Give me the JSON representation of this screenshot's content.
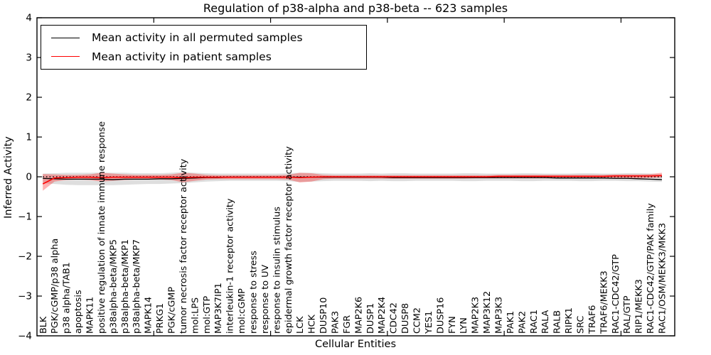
{
  "figure": {
    "title": "Regulation of p38-alpha and p38-beta -- 623 samples",
    "sample_count": "623"
  },
  "legend": {
    "items": [
      {
        "label": "Mean activity in all permuted samples",
        "color": "#000000"
      },
      {
        "label": "Mean activity in patient samples",
        "color": "#ff0000"
      }
    ],
    "position": "upper left"
  },
  "colors": {
    "patient_line": "#ff0000",
    "permuted_line": "#000000",
    "patient_band": "#ff0000",
    "permuted_band": "#999999",
    "zero_line": "#000000",
    "axis": "#000000",
    "background": "#ffffff"
  },
  "chart_data": {
    "type": "line",
    "title": "Regulation of p38-alpha and p38-beta -- 623 samples",
    "xlabel": "Cellular Entities",
    "ylabel": "Inferred Activity",
    "ylim": [
      -4,
      4
    ],
    "y_ticks": [
      -4,
      -3,
      -2,
      -1,
      0,
      1,
      2,
      3,
      4
    ],
    "y_tick_labels": [
      "−4",
      "−3",
      "−2",
      "−1",
      "0",
      "1",
      "2",
      "3",
      "4"
    ],
    "x_axis_range": [
      0,
      54.6
    ],
    "x_major_tick_values": [
      10,
      20,
      30,
      40,
      50
    ],
    "grid": false,
    "legend_position": "upper left",
    "zero_line": {
      "y": 0,
      "style": "dotted",
      "color": "#000000"
    },
    "categories": [
      "BLK",
      "PGK/cGMP/p38 alpha",
      "p38 alpha/TAB1",
      "apoptosis",
      "MAPK11",
      "positive regulation of innate immune response",
      "p38alpha-beta/MKP5",
      "p38alpha-beta/MKP1",
      "p38alpha-beta/MKP7",
      "MAPK14",
      "PRKG1",
      "PGK/cGMP",
      "tumor necrosis factor receptor activity",
      "mol:LPS",
      "mol:GTP",
      "MAP3K7IP1",
      "interleukin-1 receptor activity",
      "mol:cGMP",
      "response to stress",
      "response to UV",
      "response to insulin stimulus",
      "epidermal growth factor receptor activity",
      "LCK",
      "HCK",
      "DUSP10",
      "PAK3",
      "FGR",
      "MAP2K6",
      "DUSP1",
      "MAP2K4",
      "CDC42",
      "DUSP8",
      "CCM2",
      "YES1",
      "DUSP16",
      "FYN",
      "LYN",
      "MAP2K3",
      "MAP3K12",
      "MAP3K3",
      "PAK1",
      "PAK2",
      "RAC1",
      "RALA",
      "RALB",
      "RIPK1",
      "SRC",
      "TRAF6",
      "TRAF6/MEKK3",
      "RAC1-CDC42/GTP",
      "RAL/GTP",
      "RIP1/MEKK3",
      "RAC1-CDC42/GTP/PAK family",
      "RAC1/OSM/MEKK3/MKK3"
    ],
    "series": [
      {
        "name": "Mean activity in all permuted samples",
        "color": "#000000",
        "values": [
          -0.04,
          -0.05,
          -0.06,
          -0.06,
          -0.06,
          -0.06,
          -0.07,
          -0.06,
          -0.06,
          -0.06,
          -0.05,
          -0.05,
          -0.04,
          -0.03,
          -0.02,
          -0.02,
          -0.01,
          -0.01,
          -0.01,
          -0.01,
          -0.01,
          -0.01,
          -0.01,
          -0.01,
          -0.01,
          -0.01,
          -0.01,
          -0.01,
          -0.01,
          -0.01,
          -0.02,
          -0.02,
          -0.02,
          -0.02,
          -0.02,
          -0.02,
          -0.02,
          -0.02,
          -0.02,
          -0.02,
          -0.02,
          -0.02,
          -0.02,
          -0.02,
          -0.03,
          -0.03,
          -0.03,
          -0.03,
          -0.03,
          -0.04,
          -0.04,
          -0.05,
          -0.06,
          -0.07
        ]
      },
      {
        "name": "Mean activity in patient samples",
        "color": "#ff0000",
        "values": [
          -0.18,
          -0.03,
          -0.02,
          -0.01,
          -0.01,
          -0.02,
          -0.01,
          -0.01,
          -0.01,
          -0.01,
          -0.01,
          -0.01,
          -0.02,
          -0.01,
          -0.01,
          -0.01,
          -0.01,
          -0.01,
          -0.01,
          -0.01,
          -0.01,
          -0.01,
          -0.02,
          -0.01,
          0,
          0,
          0,
          0,
          0,
          0,
          0,
          0,
          0,
          0,
          0,
          0,
          0,
          0,
          0,
          0.01,
          0.01,
          0.01,
          0.01,
          0.01,
          0.01,
          0.01,
          0.01,
          0.01,
          0.01,
          0.02,
          0.02,
          0.02,
          0.02,
          0.03
        ]
      }
    ],
    "bands": [
      {
        "name": "permuted-samples-range",
        "color": "#999999",
        "opacity": 0.32,
        "upper": [
          0.08,
          0.09,
          0.1,
          0.1,
          0.1,
          0.11,
          0.1,
          0.1,
          0.09,
          0.09,
          0.09,
          0.1,
          0.12,
          0.1,
          0.09,
          0.08,
          0.08,
          0.08,
          0.08,
          0.08,
          0.08,
          0.09,
          0.1,
          0.1,
          0.09,
          0.08,
          0.08,
          0.08,
          0.09,
          0.08,
          0.09,
          0.09,
          0.08,
          0.08,
          0.08,
          0.08,
          0.09,
          0.09,
          0.08,
          0.08,
          0.08,
          0.09,
          0.09,
          0.08,
          0.08,
          0.08,
          0.09,
          0.09,
          0.08,
          0.08,
          0.09,
          0.09,
          0.08,
          0.06
        ],
        "lower": [
          -0.16,
          -0.18,
          -0.2,
          -0.21,
          -0.21,
          -0.21,
          -0.21,
          -0.2,
          -0.19,
          -0.18,
          -0.18,
          -0.17,
          -0.16,
          -0.14,
          -0.12,
          -0.11,
          -0.1,
          -0.1,
          -0.1,
          -0.1,
          -0.1,
          -0.11,
          -0.13,
          -0.12,
          -0.11,
          -0.1,
          -0.1,
          -0.1,
          -0.11,
          -0.1,
          -0.11,
          -0.11,
          -0.1,
          -0.1,
          -0.1,
          -0.1,
          -0.11,
          -0.11,
          -0.1,
          -0.1,
          -0.1,
          -0.11,
          -0.11,
          -0.1,
          -0.1,
          -0.1,
          -0.11,
          -0.11,
          -0.1,
          -0.1,
          -0.11,
          -0.11,
          -0.12,
          -0.13
        ]
      },
      {
        "name": "patient-samples-range",
        "color": "#ff0000",
        "opacity": 0.3,
        "upper": [
          0.07,
          0.06,
          0.05,
          0.05,
          0.06,
          0.1,
          0.08,
          0.06,
          0.05,
          0.05,
          0.05,
          0.06,
          0.1,
          0.08,
          0.05,
          0.04,
          0.04,
          0.04,
          0.04,
          0.04,
          0.04,
          0.05,
          0.1,
          0.09,
          0.05,
          0.04,
          0.04,
          0.04,
          0.04,
          0.04,
          0.04,
          0.04,
          0.04,
          0.04,
          0.04,
          0.04,
          0.04,
          0.04,
          0.04,
          0.05,
          0.05,
          0.05,
          0.05,
          0.05,
          0.05,
          0.05,
          0.05,
          0.05,
          0.05,
          0.06,
          0.06,
          0.06,
          0.07,
          0.1
        ],
        "lower": [
          -0.35,
          -0.12,
          -0.08,
          -0.07,
          -0.08,
          -0.12,
          -0.1,
          -0.08,
          -0.07,
          -0.07,
          -0.07,
          -0.08,
          -0.14,
          -0.1,
          -0.07,
          -0.06,
          -0.06,
          -0.06,
          -0.06,
          -0.06,
          -0.06,
          -0.07,
          -0.14,
          -0.12,
          -0.06,
          -0.05,
          -0.05,
          -0.05,
          -0.05,
          -0.05,
          -0.05,
          -0.05,
          -0.05,
          -0.05,
          -0.05,
          -0.05,
          -0.05,
          -0.04,
          -0.04,
          -0.04,
          -0.04,
          -0.04,
          -0.04,
          -0.04,
          -0.04,
          -0.04,
          -0.04,
          -0.04,
          -0.04,
          -0.04,
          -0.04,
          -0.04,
          -0.03,
          -0.02
        ]
      }
    ]
  }
}
